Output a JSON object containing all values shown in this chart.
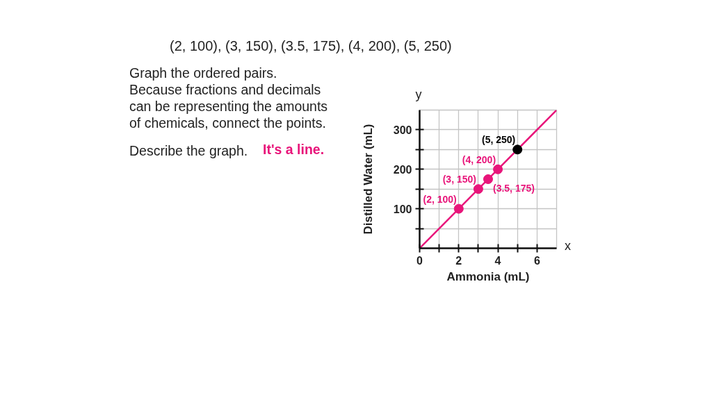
{
  "chart_data": {
    "type": "scatter",
    "title": "(2, 100), (3, 150), (3.5, 175), (4, 200), (5, 250)",
    "xlabel": "Ammonia (mL)",
    "ylabel": "Distilled Water (mL)",
    "annotations": [
      "Graph the ordered pairs.",
      "Because fractions and decimals can be representing the amounts of chemicals, connect the points.",
      "Describe the graph.",
      "It's a line.",
      "x",
      "y"
    ],
    "xlim": [
      0,
      7
    ],
    "ylim": [
      0,
      350
    ],
    "xticks": [
      {
        "value": 0,
        "label": "0"
      },
      {
        "value": 1,
        "label": null
      },
      2,
      {
        "value": 3,
        "label": null
      },
      4,
      {
        "value": 5,
        "label": null
      },
      6
    ],
    "yticks": [
      {
        "value": 50,
        "label": null
      },
      100,
      {
        "value": 150,
        "label": null
      },
      200,
      {
        "value": 250,
        "label": null
      },
      300
    ],
    "grid": true,
    "marker": "circle",
    "series": [
      {
        "type": "line",
        "marker": "none",
        "color": "#e8157a",
        "x": [
          0,
          7
        ],
        "values": [
          0,
          350
        ]
      },
      {
        "color": "#e8157a",
        "x": [
          2,
          3,
          3.5,
          4
        ],
        "values": [
          100,
          150,
          175,
          200
        ],
        "value_labels": [
          "(2, 100)",
          "(3, 150)",
          "(3.5, 175)",
          "(4, 200)"
        ]
      },
      {
        "color": "#000000",
        "x": [
          5
        ],
        "values": [
          250
        ],
        "value_labels": [
          "(5, 250)"
        ]
      }
    ]
  }
}
